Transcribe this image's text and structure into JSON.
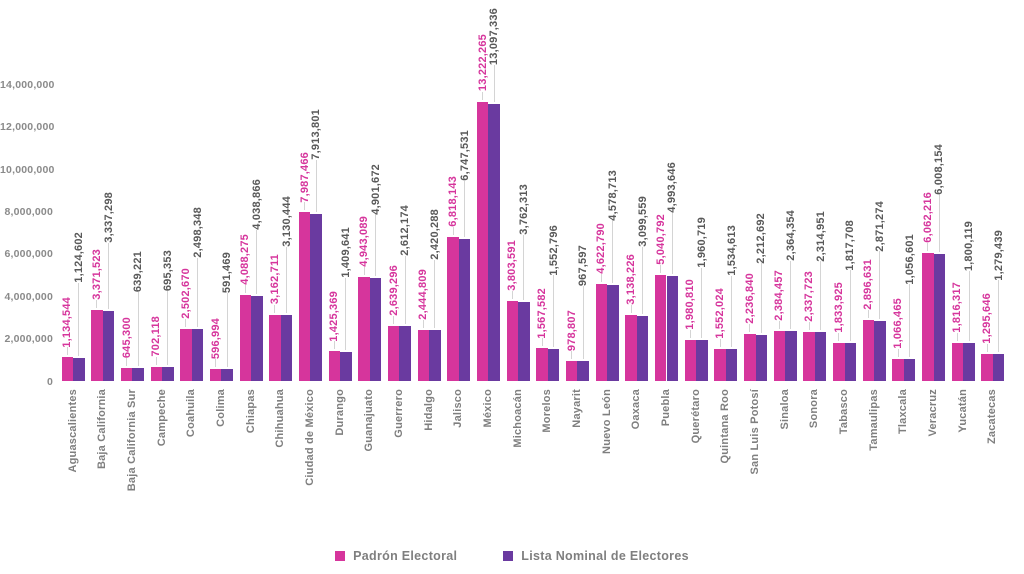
{
  "chart_data": {
    "type": "bar",
    "title": "",
    "xlabel": "",
    "ylabel": "",
    "ylim": [
      0,
      14000000
    ],
    "ytick_step": 2000000,
    "ytick_labels": [
      "0",
      "2,000,000",
      "4,000,000",
      "6,000,000",
      "8,000,000",
      "10,000,000",
      "12,000,000",
      "14,000,000"
    ],
    "grid": false,
    "legend_position": "bottom",
    "categories": [
      "Aguascalientes",
      "Baja California",
      "Baja California Sur",
      "Campeche",
      "Coahuila",
      "Colima",
      "Chiapas",
      "Chihuahua",
      "Ciudad de México",
      "Durango",
      "Guanajuato",
      "Guerrero",
      "Hidalgo",
      "Jalisco",
      "México",
      "Michoacán",
      "Morelos",
      "Nayarit",
      "Nuevo León",
      "Oaxaca",
      "Puebla",
      "Querétaro",
      "Quintana Roo",
      "San Luis Potosí",
      "Sinaloa",
      "Sonora",
      "Tabasco",
      "Tamaulipas",
      "Tlaxcala",
      "Veracruz",
      "Yucatán",
      "Zacatecas"
    ],
    "series": [
      {
        "name": "Padrón Electoral",
        "color": "#d6359c",
        "label_color": "#d6359c",
        "values": [
          1134544,
          3371523,
          645300,
          702118,
          2502670,
          596994,
          4088275,
          3162711,
          7987466,
          1425369,
          4943089,
          2639296,
          2444809,
          6818143,
          13222265,
          3803591,
          1567582,
          978807,
          4622790,
          3138226,
          5040792,
          1980810,
          1552024,
          2236840,
          2384457,
          2337723,
          1833925,
          2896631,
          1066465,
          6062216,
          1816317,
          1295646
        ]
      },
      {
        "name": "Lista Nominal de Electores",
        "color": "#6a3aa0",
        "label_color": "#595959",
        "values": [
          1124602,
          3337298,
          639221,
          695353,
          2498348,
          591469,
          4038866,
          3130444,
          7913801,
          1409641,
          4901672,
          2612174,
          2420288,
          6747531,
          13097336,
          3762313,
          1552796,
          967597,
          4578713,
          3099559,
          4993646,
          1960719,
          1534613,
          2212692,
          2364354,
          2314951,
          1817708,
          2871274,
          1056601,
          6008154,
          1800119,
          1279439
        ]
      }
    ]
  },
  "legend": {
    "items": [
      {
        "label": "Padrón Electoral",
        "color": "#d6359c"
      },
      {
        "label": "Lista Nominal de Electores",
        "color": "#6a3aa0"
      }
    ]
  },
  "colors": {
    "background": "#ffffff",
    "axis_text": "#8a8a8a",
    "category_text": "#7f7f7f",
    "leader_line": "#d4d4d4"
  }
}
